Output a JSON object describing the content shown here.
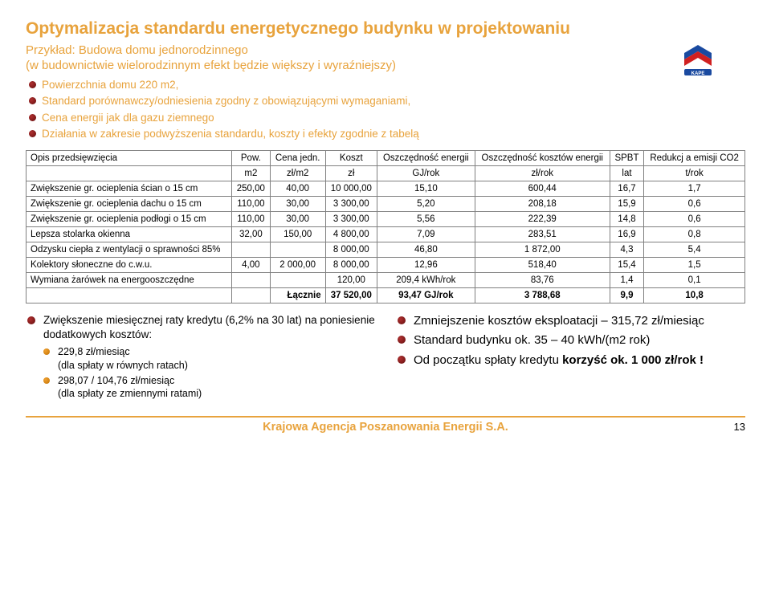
{
  "title": "Optymalizacja standardu energetycznego budynku w projektowaniu",
  "subtitle1": "Przykład: Budowa domu jednorodzinnego",
  "subtitle2": "(w budownictwie wielorodzinnym efekt będzie większy i wyraźniejszy)",
  "intro_bullets": [
    "Powierzchnia domu 220 m2,",
    "Standard porównawczy/odniesienia zgodny z obowiązującymi wymaganiami,",
    "Cena energii jak dla gazu ziemnego",
    "Działania w zakresie podwyższenia standardu, koszty i efekty zgodnie z tabelą"
  ],
  "table": {
    "headers": [
      "Opis przedsięwzięcia",
      "Pow.",
      "Cena jedn.",
      "Koszt",
      "Oszczędność energii",
      "Oszczędność kosztów energii",
      "SPBT",
      "Redukcj a emisji CO2"
    ],
    "units": [
      "",
      "m2",
      "zł/m2",
      "zł",
      "GJ/rok",
      "zł/rok",
      "lat",
      "t/rok"
    ],
    "rows": [
      [
        "Zwiększenie gr. ocieplenia ścian o 15 cm",
        "250,00",
        "40,00",
        "10 000,00",
        "15,10",
        "600,44",
        "16,7",
        "1,7"
      ],
      [
        "Zwiększenie gr. ocieplenia dachu o 15 cm",
        "110,00",
        "30,00",
        "3 300,00",
        "5,20",
        "208,18",
        "15,9",
        "0,6"
      ],
      [
        "Zwiększenie gr. ocieplenia podłogi o 15 cm",
        "110,00",
        "30,00",
        "3 300,00",
        "5,56",
        "222,39",
        "14,8",
        "0,6"
      ],
      [
        "Lepsza stolarka okienna",
        "32,00",
        "150,00",
        "4 800,00",
        "7,09",
        "283,51",
        "16,9",
        "0,8"
      ],
      [
        "Odzysku ciepła z wentylacji o sprawności 85%",
        "",
        "",
        "8 000,00",
        "46,80",
        "1 872,00",
        "4,3",
        "5,4"
      ],
      [
        "Kolektory słoneczne do c.w.u.",
        "4,00",
        "2 000,00",
        "8 000,00",
        "12,96",
        "518,40",
        "15,4",
        "1,5"
      ],
      [
        "Wymiana żarówek na energooszczędne",
        "",
        "",
        "120,00",
        "209,4 kWh/rok",
        "83,76",
        "1,4",
        "0,1"
      ]
    ],
    "sum": [
      "",
      "",
      "Łącznie",
      "37 520,00",
      "93,47 GJ/rok",
      "3 788,68",
      "9,9",
      "10,8"
    ]
  },
  "left_block": {
    "main": "Zwiększenie miesięcznej raty kredytu (6,2% na 30 lat) na poniesienie dodatkowych kosztów:",
    "sub": [
      {
        "line1": "229,8 zł/miesiąc",
        "line2": "(dla spłaty w równych ratach)"
      },
      {
        "line1": "298,07 / 104,76 zł/miesiąc",
        "line2": "(dla spłaty ze zmiennymi ratami)"
      }
    ]
  },
  "right_block": {
    "items": [
      {
        "text": "Zmniejszenie kosztów eksploatacji – 315,72 zł/miesiąc",
        "color": "#000"
      },
      {
        "text": "Standard budynku ok. 35 – 40 kWh/(m2 rok)",
        "color": "#000"
      },
      {
        "prefix": "Od początku spłaty kredytu ",
        "highlight": "korzyść ok. 1 000 zł/rok !"
      }
    ]
  },
  "footer": {
    "org": "Krajowa Agencja Poszanowania Energii S.A.",
    "page": "13"
  },
  "colors": {
    "accent": "#e8a33d",
    "red": "#c01818"
  }
}
